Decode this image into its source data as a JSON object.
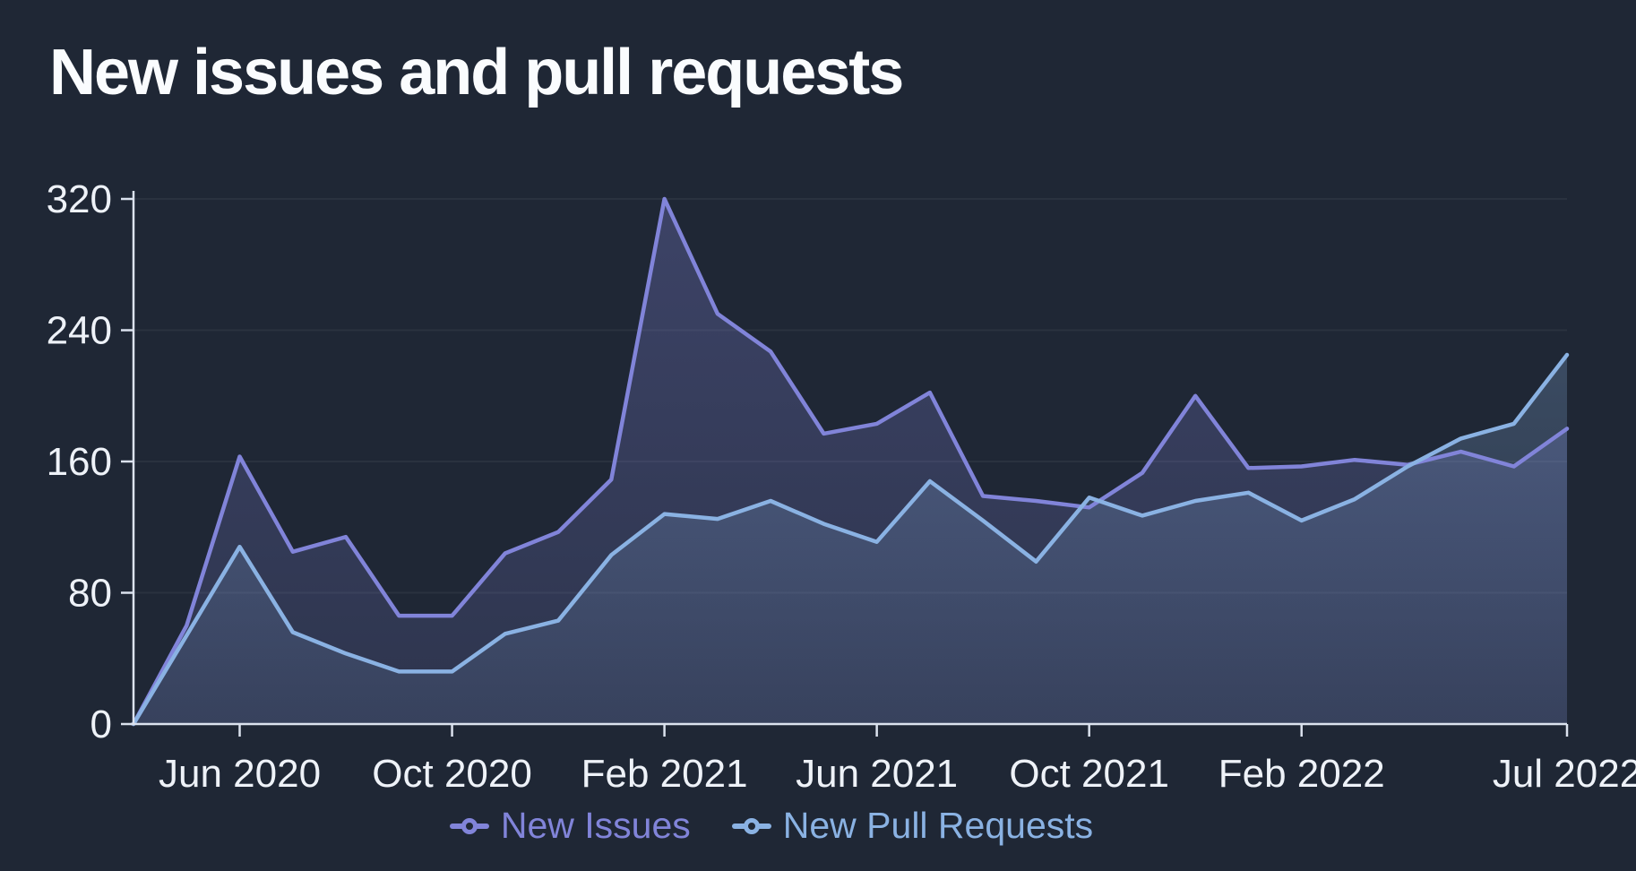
{
  "title": "New issues and pull requests",
  "colors": {
    "background": "#1f2735",
    "title_text": "#fafcfe",
    "axis_line": "#dbe2ee",
    "axis_label": "#eef2f8",
    "gridline": "rgba(255,255,255,0.05)",
    "new_issues": "#8184d9",
    "new_pull_requests": "#8ab2e3"
  },
  "chart_data": {
    "type": "area",
    "title": "New issues and pull requests",
    "xlabel": "",
    "ylabel": "",
    "x": [
      "Apr 2020",
      "May 2020",
      "Jun 2020",
      "Jul 2020",
      "Aug 2020",
      "Sep 2020",
      "Oct 2020",
      "Nov 2020",
      "Dec 2020",
      "Jan 2021",
      "Feb 2021",
      "Mar 2021",
      "Apr 2021",
      "May 2021",
      "Jun 2021",
      "Jul 2021",
      "Aug 2021",
      "Sep 2021",
      "Oct 2021",
      "Nov 2021",
      "Dec 2021",
      "Jan 2022",
      "Feb 2022",
      "Mar 2022",
      "Apr 2022",
      "May 2022",
      "Jun 2022",
      "Jul 2022"
    ],
    "x_tick_indices": [
      2,
      6,
      10,
      14,
      18,
      22,
      27
    ],
    "x_tick_labels": [
      "Jun 2020",
      "Oct 2020",
      "Feb 2021",
      "Jun 2021",
      "Oct 2021",
      "Feb 2022",
      "Jul 2022"
    ],
    "y_ticks": [
      0,
      80,
      160,
      240,
      320
    ],
    "ylim": [
      0,
      320
    ],
    "grid": "horizontal-only",
    "legend_position": "bottom-center",
    "series": [
      {
        "name": "New Issues",
        "color": "#8184d9",
        "values": [
          0,
          60,
          163,
          105,
          114,
          66,
          66,
          104,
          117,
          149,
          320,
          250,
          227,
          177,
          183,
          202,
          139,
          136,
          132,
          153,
          200,
          156,
          157,
          161,
          158,
          166,
          157,
          180
        ]
      },
      {
        "name": "New Pull Requests",
        "color": "#8ab2e3",
        "values": [
          0,
          54,
          108,
          56,
          43,
          32,
          32,
          55,
          63,
          103,
          128,
          125,
          136,
          122,
          111,
          148,
          124,
          99,
          138,
          127,
          136,
          141,
          124,
          137,
          157,
          174,
          183,
          225
        ]
      }
    ]
  }
}
